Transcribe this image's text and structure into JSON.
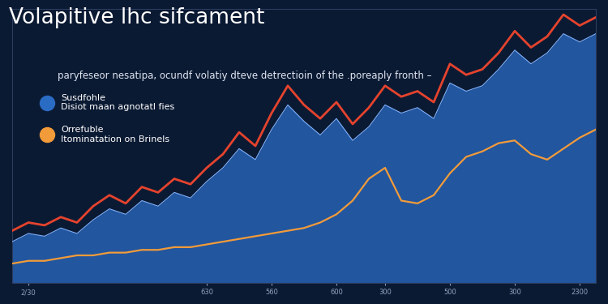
{
  "chart_data": {
    "type": "line",
    "title": "Volapitive lhc sifcament",
    "subtitle": "paryfeseor nesatipa, ocundf volatiy dteve detrectioin of the .poreaply fronth –",
    "categories": [
      null,
      "2/30",
      null,
      null,
      null,
      null,
      null,
      null,
      null,
      null,
      null,
      null,
      "630",
      null,
      null,
      null,
      "560",
      null,
      null,
      null,
      "600",
      null,
      null,
      "300",
      null,
      null,
      null,
      "500",
      null,
      null,
      null,
      "300",
      null,
      null,
      null,
      "2300",
      null
    ],
    "ylim": [
      0,
      100
    ],
    "yticks": [],
    "tick_labels": "x",
    "grid": false,
    "legend": "upper left",
    "series": [
      {
        "name": "Susdfohle\nDisiot maan agnotatl fies",
        "type": "area",
        "color": "#2a6bc4",
        "values": [
          15,
          18,
          17,
          20,
          18,
          23,
          27,
          25,
          30,
          28,
          33,
          31,
          37,
          42,
          49,
          45,
          56,
          65,
          59,
          54,
          60,
          52,
          57,
          65,
          62,
          64,
          60,
          73,
          70,
          72,
          78,
          85,
          80,
          84,
          91,
          88,
          91
        ]
      },
      {
        "type": "line",
        "color": "#e5432d",
        "values": [
          19,
          22,
          21,
          24,
          22,
          28,
          32,
          29,
          35,
          33,
          38,
          36,
          42,
          47,
          55,
          50,
          62,
          72,
          65,
          60,
          66,
          58,
          64,
          72,
          68,
          70,
          66,
          80,
          76,
          78,
          84,
          92,
          86,
          90,
          98,
          94,
          97
        ]
      },
      {
        "name": "Orrefuble\nItominatation on Brinels",
        "type": "line",
        "color": "#f29b3a",
        "values": [
          7,
          8,
          8,
          9,
          10,
          10,
          11,
          11,
          12,
          12,
          13,
          13,
          14,
          15,
          16,
          17,
          18,
          19,
          20,
          22,
          25,
          30,
          38,
          42,
          30,
          29,
          32,
          40,
          46,
          48,
          51,
          52,
          47,
          45,
          49,
          53,
          56
        ]
      }
    ]
  }
}
